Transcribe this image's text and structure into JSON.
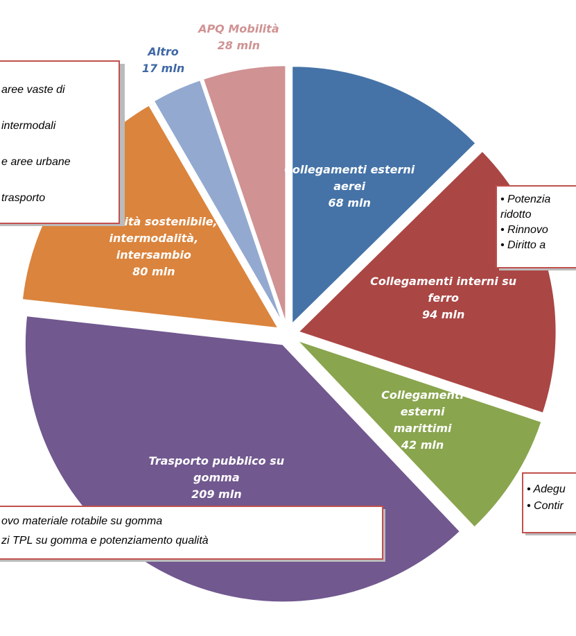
{
  "chart_data": {
    "type": "pie",
    "categories": [
      "Collegamenti esterni aerei",
      "Collegamenti interni su ferro",
      "Collegamenti esterni marittimi",
      "Trasporto pubblico su gomma",
      "Mobilità sostenibile, intermodalità, intersambio",
      "Altro",
      "APQ Mobilità"
    ],
    "values": [
      68,
      94,
      42,
      209,
      80,
      17,
      28
    ],
    "value_labels": [
      "68 mln",
      "94 mln",
      "42 mln",
      "209 mln",
      "80 mln",
      "17 mln",
      "28 mln"
    ],
    "colors": [
      "#4573a7",
      "#aa4644",
      "#89a54e",
      "#71588f",
      "#db843d",
      "#93a9d0",
      "#d09293"
    ],
    "annotations": [
      [
        "aree vaste di",
        "intermodali",
        "e aree urbane",
        "trasporto"
      ],
      [
        "• Potenzia",
        "ridotto",
        "• Rinnovo",
        "• Diritto a"
      ],
      [
        "• Adegu",
        "• Contir"
      ],
      [
        "ovo materiale rotabile su gomma",
        "zi TPL su gomma e potenziamento qualità"
      ]
    ]
  }
}
